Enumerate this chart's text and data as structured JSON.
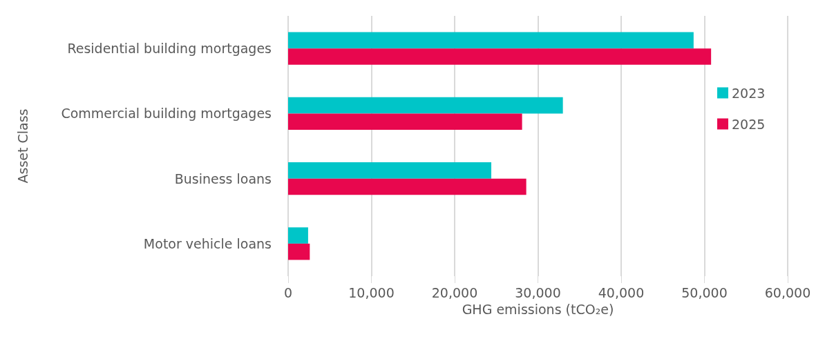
{
  "chart_data": {
    "type": "bar",
    "orientation": "horizontal",
    "xlabel": "GHG emissions (tCO₂e)",
    "ylabel": "Asset Class",
    "categories": [
      "Residential building mortgages",
      "Commercial building mortgages",
      "Business loans",
      "Motor vehicle loans"
    ],
    "series": [
      {
        "name": "2023",
        "color": "#00c5c8",
        "values": [
          48700,
          33000,
          24400,
          2400
        ]
      },
      {
        "name": "2025",
        "color": "#e8074e",
        "values": [
          50800,
          28100,
          28600,
          2600
        ]
      }
    ],
    "xlim": [
      0,
      60000
    ],
    "xticks": [
      0,
      {
        "value": 10000,
        "label": "10,000"
      },
      {
        "value": 20000,
        "label": "20,000"
      },
      {
        "value": 30000,
        "label": "30,000"
      },
      {
        "value": 40000,
        "label": "40,000"
      },
      {
        "value": 50000,
        "label": "50,000"
      },
      {
        "value": 60000,
        "label": "60,000"
      }
    ],
    "grid": "x",
    "legend": "right"
  }
}
